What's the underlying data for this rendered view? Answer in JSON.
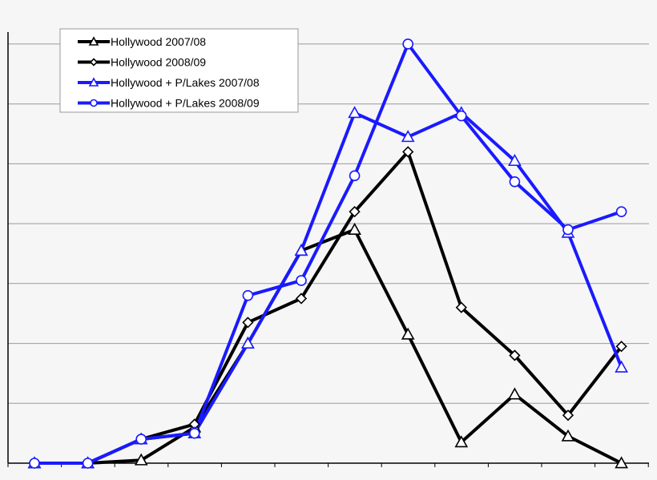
{
  "chart_data": {
    "type": "line",
    "x": [
      1,
      2,
      3,
      4,
      5,
      6,
      7,
      8,
      9,
      10,
      11,
      12
    ],
    "ylim": [
      0,
      7.2
    ],
    "grid": true,
    "legend_position": "top-left",
    "series": [
      {
        "name": "Hollywood 2007/08",
        "color": "#000000",
        "marker": "triangle",
        "values": [
          0.0,
          0.0,
          0.05,
          0.6,
          2.0,
          3.55,
          3.9,
          2.15,
          0.35,
          1.15,
          0.45,
          0.0
        ]
      },
      {
        "name": "Hollywood 2008/09",
        "color": "#000000",
        "marker": "diamond",
        "values": [
          0.0,
          0.0,
          0.4,
          0.65,
          2.35,
          2.75,
          4.2,
          5.2,
          2.6,
          1.8,
          0.8,
          1.95
        ]
      },
      {
        "name": "Hollywood + P/Lakes 2007/08",
        "color": "#1a1aff",
        "marker": "triangle",
        "values": [
          0.0,
          0.0,
          0.4,
          0.5,
          2.0,
          3.55,
          5.85,
          5.45,
          5.85,
          5.05,
          3.85,
          1.6
        ]
      },
      {
        "name": "Hollywood + P/Lakes 2008/09",
        "color": "#1a1aff",
        "marker": "circle",
        "values": [
          0.0,
          0.0,
          0.4,
          0.5,
          2.8,
          3.05,
          4.8,
          7.0,
          5.8,
          4.7,
          3.9,
          4.2
        ]
      }
    ]
  }
}
